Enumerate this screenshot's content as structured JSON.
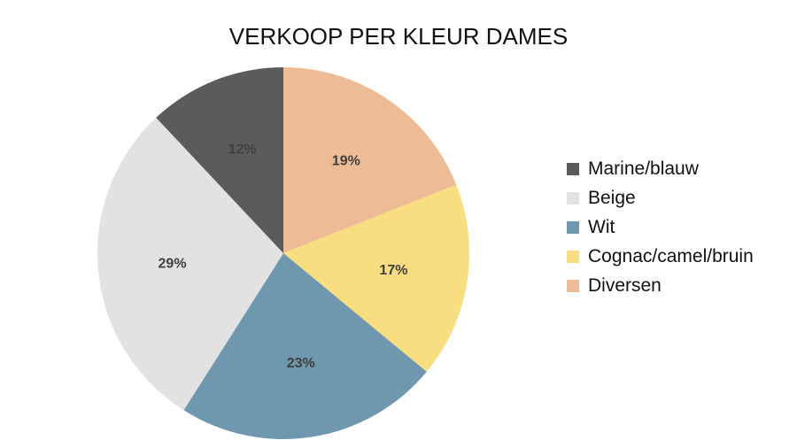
{
  "chart_data": {
    "type": "pie",
    "title": "VERKOOP PER KLEUR DAMES",
    "start_angle_deg": 0,
    "direction": "clockwise",
    "legend_position": "right",
    "slices": [
      {
        "name": "Diversen",
        "value": 19,
        "label": "19%",
        "color": "#EDBC96"
      },
      {
        "name": "Cognac/camel/bruin",
        "value": 17,
        "label": "17%",
        "color": "#F8DE80"
      },
      {
        "name": "Wit",
        "value": 23,
        "label": "23%",
        "color": "#6F98AE"
      },
      {
        "name": "Beige",
        "value": 29,
        "label": "29%",
        "color": "#E2E2E2"
      },
      {
        "name": "Marine/blauw",
        "value": 12,
        "label": "12%",
        "color": "#5B5B5B"
      }
    ],
    "legend_order": [
      "Marine/blauw",
      "Beige",
      "Wit",
      "Cognac/camel/bruin",
      "Diversen"
    ]
  }
}
